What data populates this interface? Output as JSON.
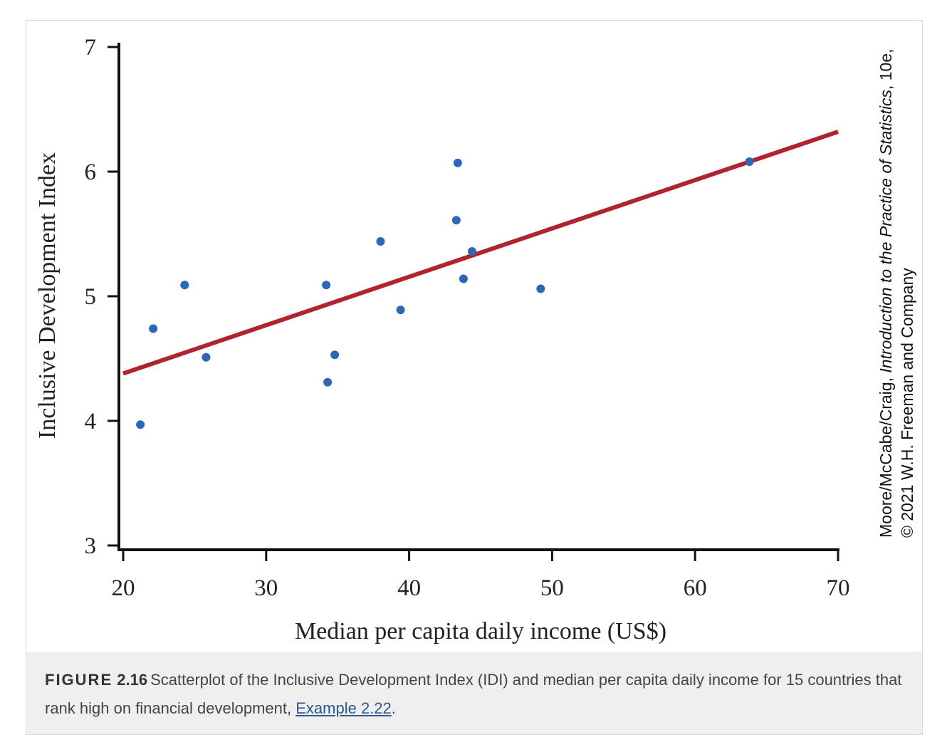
{
  "chart_data": {
    "type": "scatter",
    "xlabel": "Median per capita daily income (US$)",
    "ylabel": "Inclusive Development Index",
    "xlim": [
      20,
      70
    ],
    "ylim": [
      3,
      7
    ],
    "xticks": [
      "20",
      "30",
      "40",
      "50",
      "60",
      "70"
    ],
    "yticks": [
      "3",
      "4",
      "5",
      "6",
      "7"
    ],
    "grid": false,
    "points": [
      {
        "x": 21.2,
        "y": 3.97
      },
      {
        "x": 22.1,
        "y": 4.74
      },
      {
        "x": 24.3,
        "y": 5.09
      },
      {
        "x": 25.8,
        "y": 4.51
      },
      {
        "x": 34.2,
        "y": 5.09
      },
      {
        "x": 34.3,
        "y": 4.31
      },
      {
        "x": 34.8,
        "y": 4.53
      },
      {
        "x": 38.0,
        "y": 5.44
      },
      {
        "x": 39.4,
        "y": 4.89
      },
      {
        "x": 43.3,
        "y": 5.61
      },
      {
        "x": 43.4,
        "y": 6.07
      },
      {
        "x": 43.8,
        "y": 5.14
      },
      {
        "x": 44.4,
        "y": 5.36
      },
      {
        "x": 49.2,
        "y": 5.06
      },
      {
        "x": 63.8,
        "y": 6.08
      }
    ],
    "fit_line": {
      "x": [
        20,
        70
      ],
      "y": [
        4.38,
        6.32
      ]
    },
    "colors": {
      "points": "#2e66b8",
      "fit_line": "#b0232f",
      "axes": "#111111"
    }
  },
  "credit": {
    "line1_prefix": "Moore/McCabe/Craig, ",
    "line1_title": "Introduction to the Practice of Statistics",
    "line1_suffix": ", 10e,",
    "line2": "© 2021 W.H. Freeman and Company"
  },
  "caption": {
    "label": "FIGURE",
    "number": "2.16",
    "text": "Scatterplot of the Inclusive Development Index (IDI) and median per capita daily income for 15 countries that rank high on financial development, ",
    "link_text": "Example 2.22",
    "end": "."
  }
}
